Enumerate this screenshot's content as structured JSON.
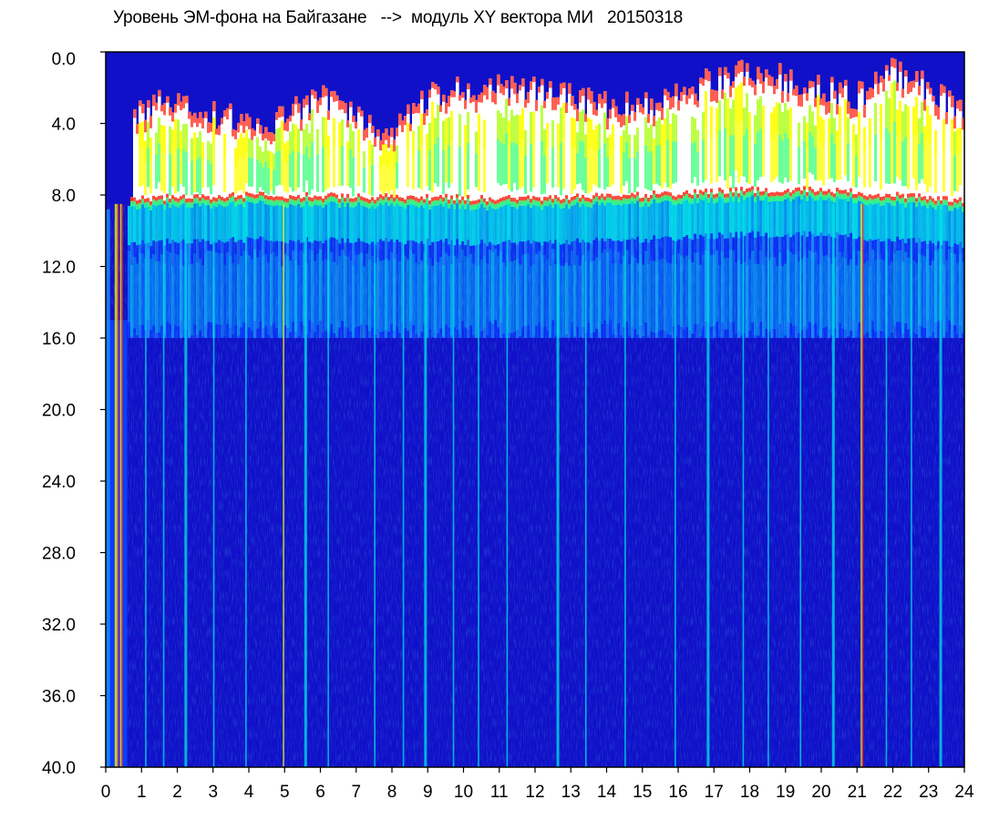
{
  "chart_data": {
    "type": "heatmap",
    "title": "Уровень ЭМ-фона на Байгазане   -->  модуль XY вектора МИ   20150318",
    "xlabel": "",
    "ylabel": "",
    "x_range": [
      0,
      24
    ],
    "y_range": [
      0.0,
      40.0
    ],
    "y_axis_inverted": true,
    "x_ticks": [
      "0",
      "1",
      "2",
      "3",
      "4",
      "5",
      "6",
      "7",
      "8",
      "9",
      "10",
      "11",
      "12",
      "13",
      "14",
      "15",
      "16",
      "17",
      "18",
      "19",
      "20",
      "21",
      "22",
      "23",
      "24"
    ],
    "y_ticks": [
      "0.0",
      "4.0",
      "8.0",
      "12.0",
      "16.0",
      "20.0",
      "24.0",
      "28.0",
      "32.0",
      "36.0",
      "40.0"
    ],
    "grid": false,
    "colormap": [
      "#1010c8",
      "#0a3cff",
      "#1e90ff",
      "#00e5e5",
      "#3cff7a",
      "#ffff00",
      "#ff2a1a",
      "#ffffff"
    ],
    "band_upper_edge": [
      [
        0.0,
        40.0
      ],
      [
        0.6,
        15.0
      ],
      [
        0.8,
        3.5
      ],
      [
        2.0,
        2.5
      ],
      [
        3.0,
        3.5
      ],
      [
        4.5,
        4.0
      ],
      [
        6.0,
        2.5
      ],
      [
        8.0,
        4.5
      ],
      [
        9.0,
        2.5
      ],
      [
        10.0,
        2.0
      ],
      [
        12.0,
        2.0
      ],
      [
        14.0,
        3.0
      ],
      [
        15.0,
        3.0
      ],
      [
        16.0,
        2.5
      ],
      [
        17.0,
        1.5
      ],
      [
        18.0,
        1.0
      ],
      [
        20.0,
        2.0
      ],
      [
        21.0,
        2.5
      ],
      [
        22.0,
        1.0
      ],
      [
        23.0,
        2.0
      ],
      [
        24.0,
        3.5
      ]
    ],
    "band_lower_edge": [
      [
        0.0,
        40.0
      ],
      [
        0.6,
        8.5
      ],
      [
        4.0,
        8.3
      ],
      [
        8.0,
        8.4
      ],
      [
        12.0,
        8.5
      ],
      [
        16.0,
        8.2
      ],
      [
        18.0,
        8.0
      ],
      [
        20.0,
        8.0
      ],
      [
        22.0,
        8.3
      ],
      [
        24.0,
        8.6
      ]
    ],
    "vertical_streaks": [
      0.25,
      0.4,
      1.1,
      1.6,
      2.2,
      3.0,
      3.9,
      4.95,
      5.55,
      6.2,
      7.5,
      8.3,
      8.9,
      9.7,
      10.4,
      11.2,
      12.6,
      13.4,
      14.5,
      15.9,
      16.8,
      17.8,
      18.5,
      19.4,
      20.3,
      21.1,
      21.8,
      22.5,
      23.3
    ]
  }
}
